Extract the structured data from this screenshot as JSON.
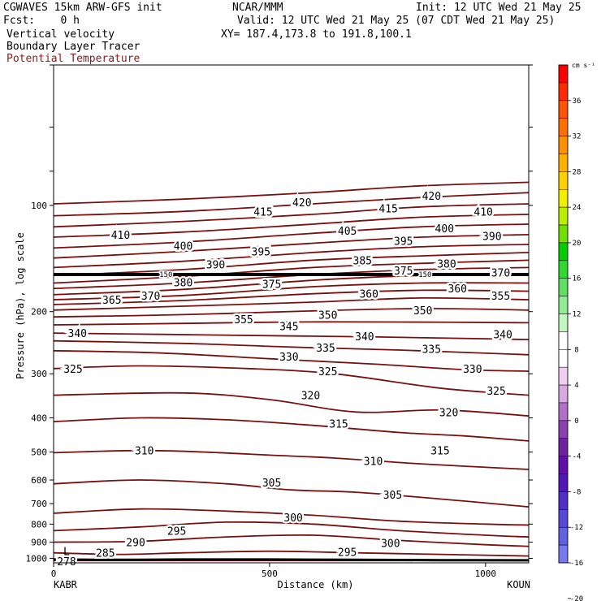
{
  "header": {
    "title": "CGWAVES 15km ARW-GFS init",
    "org": "NCAR/MMM",
    "init": "Init: 12 UTC Wed 21 May 25",
    "fcst": "Fcst:    0 h",
    "valid": "Valid: 12 UTC Wed 21 May 25 (07 CDT Wed 21 May 25)",
    "xy": "XY= 187.4,173.8 to 191.8,100.1",
    "field1": "Vertical velocity",
    "field2": "Boundary Layer Tracer",
    "field3": "Potential Temperature",
    "field3_color": "#8b1a1a"
  },
  "chart_data": {
    "type": "line",
    "ylabel": "Pressure (hPa), log scale",
    "xlabel": "Distance (km)",
    "x_start_label": "KABR",
    "x_end_label": "KOUN",
    "xlim": [
      0,
      1100
    ],
    "ylim": [
      1030,
      40
    ],
    "y_scale": "log",
    "x_ticks": [
      0,
      500,
      1000
    ],
    "y_ticks": [
      100,
      200,
      300,
      400,
      500,
      600,
      700,
      800,
      900,
      1000
    ],
    "contour_color": "#7a1010",
    "isentropes": [
      {
        "theta": 278,
        "points": [
          [
            0,
            1015
          ],
          [
            1100,
            1015
          ]
        ]
      },
      {
        "theta": 285,
        "points": [
          [
            0,
            965
          ],
          [
            150,
            975
          ],
          [
            300,
            965
          ],
          [
            500,
            955
          ],
          [
            700,
            965
          ],
          [
            900,
            975
          ],
          [
            1100,
            985
          ]
        ]
      },
      {
        "theta": 290,
        "points": [
          [
            0,
            900
          ],
          [
            200,
            895
          ],
          [
            400,
            870
          ],
          [
            600,
            860
          ],
          [
            800,
            890
          ],
          [
            1000,
            915
          ],
          [
            1100,
            925
          ]
        ]
      },
      {
        "theta": 295,
        "points": [
          [
            0,
            835
          ],
          [
            200,
            815
          ],
          [
            400,
            790
          ],
          [
            600,
            800
          ],
          [
            800,
            835
          ],
          [
            1000,
            860
          ],
          [
            1100,
            870
          ]
        ]
      },
      {
        "theta": 300,
        "points": [
          [
            0,
            745
          ],
          [
            200,
            725
          ],
          [
            400,
            735
          ],
          [
            600,
            755
          ],
          [
            800,
            785
          ],
          [
            1000,
            800
          ],
          [
            1100,
            805
          ]
        ]
      },
      {
        "theta": 305,
        "points": [
          [
            0,
            615
          ],
          [
            200,
            600
          ],
          [
            400,
            615
          ],
          [
            550,
            640
          ],
          [
            700,
            650
          ],
          [
            900,
            680
          ],
          [
            1100,
            715
          ]
        ]
      },
      {
        "theta": 310,
        "points": [
          [
            0,
            502
          ],
          [
            200,
            495
          ],
          [
            350,
            500
          ],
          [
            500,
            510
          ],
          [
            650,
            520
          ],
          [
            850,
            540
          ],
          [
            1100,
            560
          ]
        ]
      },
      {
        "theta": 315,
        "points": [
          [
            0,
            410
          ],
          [
            200,
            400
          ],
          [
            400,
            405
          ],
          [
            600,
            420
          ],
          [
            800,
            440
          ],
          [
            950,
            450
          ],
          [
            1100,
            465
          ]
        ]
      },
      {
        "theta": 320,
        "points": [
          [
            0,
            345
          ],
          [
            300,
            340
          ],
          [
            500,
            355
          ],
          [
            700,
            385
          ],
          [
            900,
            380
          ],
          [
            1100,
            395
          ]
        ]
      },
      {
        "theta": 325,
        "points": [
          [
            0,
            290
          ],
          [
            200,
            285
          ],
          [
            450,
            290
          ],
          [
            650,
            300
          ],
          [
            900,
            330
          ],
          [
            1100,
            345
          ]
        ]
      },
      {
        "theta": 330,
        "points": [
          [
            0,
            258
          ],
          [
            250,
            262
          ],
          [
            500,
            272
          ],
          [
            750,
            282
          ],
          [
            950,
            292
          ],
          [
            1100,
            295
          ]
        ]
      },
      {
        "theta": 335,
        "points": [
          [
            0,
            242
          ],
          [
            300,
            246
          ],
          [
            550,
            252
          ],
          [
            800,
            257
          ],
          [
            1100,
            265
          ]
        ]
      },
      {
        "theta": 340,
        "points": [
          [
            0,
            230
          ],
          [
            250,
            232
          ],
          [
            500,
            234
          ],
          [
            750,
            236
          ],
          [
            1100,
            240
          ]
        ]
      },
      {
        "theta": 345,
        "points": [
          [
            0,
            218
          ],
          [
            300,
            216
          ],
          [
            550,
            214
          ],
          [
            800,
            214
          ],
          [
            1100,
            215
          ]
        ]
      },
      {
        "theta": 350,
        "points": [
          [
            0,
            207
          ],
          [
            300,
            204
          ],
          [
            600,
            199
          ],
          [
            850,
            196
          ],
          [
            1100,
            198
          ]
        ]
      },
      {
        "theta": 355,
        "points": [
          [
            0,
            198
          ],
          [
            300,
            193
          ],
          [
            600,
            188
          ],
          [
            850,
            183
          ],
          [
            1100,
            185
          ]
        ]
      },
      {
        "theta": 360,
        "points": [
          [
            0,
            191
          ],
          [
            300,
            186
          ],
          [
            600,
            178
          ],
          [
            850,
            174
          ],
          [
            1100,
            175
          ]
        ]
      },
      {
        "theta": 365,
        "points": [
          [
            0,
            185
          ],
          [
            300,
            180
          ],
          [
            600,
            170
          ],
          [
            850,
            166
          ],
          [
            1100,
            166
          ]
        ]
      },
      {
        "theta": 370,
        "points": [
          [
            0,
            179
          ],
          [
            300,
            173
          ],
          [
            600,
            163
          ],
          [
            850,
            158
          ],
          [
            1100,
            157
          ]
        ]
      },
      {
        "theta": 375,
        "points": [
          [
            0,
            172
          ],
          [
            300,
            166
          ],
          [
            600,
            157
          ],
          [
            850,
            152
          ],
          [
            1100,
            150
          ]
        ]
      },
      {
        "theta": 380,
        "points": [
          [
            0,
            166
          ],
          [
            300,
            159
          ],
          [
            600,
            150
          ],
          [
            850,
            146
          ],
          [
            1100,
            143
          ]
        ]
      },
      {
        "theta": 385,
        "points": [
          [
            0,
            158
          ],
          [
            300,
            152
          ],
          [
            600,
            143
          ],
          [
            850,
            139
          ],
          [
            1100,
            136
          ]
        ]
      },
      {
        "theta": 390,
        "points": [
          [
            0,
            150
          ],
          [
            300,
            144
          ],
          [
            600,
            136
          ],
          [
            850,
            131
          ],
          [
            1100,
            129
          ]
        ]
      },
      {
        "theta": 395,
        "points": [
          [
            0,
            141
          ],
          [
            300,
            135
          ],
          [
            600,
            128
          ],
          [
            850,
            123
          ],
          [
            1100,
            121
          ]
        ]
      },
      {
        "theta": 400,
        "points": [
          [
            0,
            132
          ],
          [
            300,
            127
          ],
          [
            600,
            120
          ],
          [
            850,
            115
          ],
          [
            1100,
            113
          ]
        ]
      },
      {
        "theta": 405,
        "points": [
          [
            0,
            123
          ],
          [
            300,
            119
          ],
          [
            600,
            113
          ],
          [
            850,
            108
          ],
          [
            1100,
            106
          ]
        ]
      },
      {
        "theta": 410,
        "points": [
          [
            0,
            115
          ],
          [
            300,
            111
          ],
          [
            600,
            106
          ],
          [
            850,
            101
          ],
          [
            1100,
            99
          ]
        ]
      },
      {
        "theta": 415,
        "points": [
          [
            0,
            107
          ],
          [
            300,
            104
          ],
          [
            600,
            99
          ],
          [
            850,
            95
          ],
          [
            1100,
            92
          ]
        ]
      },
      {
        "theta": 420,
        "points": [
          [
            0,
            99
          ],
          [
            300,
            96
          ],
          [
            600,
            92
          ],
          [
            850,
            88
          ],
          [
            1100,
            86
          ]
        ]
      }
    ],
    "contour_labels": [
      {
        "text": "278",
        "x": 30,
        "p": 1020
      },
      {
        "text": "285",
        "x": 120,
        "p": 965
      },
      {
        "text": "290",
        "x": 190,
        "p": 900
      },
      {
        "text": "295",
        "x": 285,
        "p": 835
      },
      {
        "text": "295",
        "x": 680,
        "p": 960
      },
      {
        "text": "300",
        "x": 555,
        "p": 765
      },
      {
        "text": "300",
        "x": 780,
        "p": 905
      },
      {
        "text": "305",
        "x": 505,
        "p": 610
      },
      {
        "text": "305",
        "x": 785,
        "p": 660
      },
      {
        "text": "310",
        "x": 210,
        "p": 495
      },
      {
        "text": "310",
        "x": 740,
        "p": 530
      },
      {
        "text": "315",
        "x": 660,
        "p": 415
      },
      {
        "text": "315",
        "x": 895,
        "p": 495
      },
      {
        "text": "320",
        "x": 595,
        "p": 345
      },
      {
        "text": "320",
        "x": 915,
        "p": 385
      },
      {
        "text": "325",
        "x": 45,
        "p": 290
      },
      {
        "text": "325",
        "x": 635,
        "p": 295
      },
      {
        "text": "325",
        "x": 1025,
        "p": 335
      },
      {
        "text": "330",
        "x": 545,
        "p": 268
      },
      {
        "text": "330",
        "x": 970,
        "p": 290
      },
      {
        "text": "335",
        "x": 630,
        "p": 253
      },
      {
        "text": "335",
        "x": 875,
        "p": 255
      },
      {
        "text": "340",
        "x": 55,
        "p": 230
      },
      {
        "text": "340",
        "x": 720,
        "p": 235
      },
      {
        "text": "340",
        "x": 1040,
        "p": 232
      },
      {
        "text": "345",
        "x": 545,
        "p": 220
      },
      {
        "text": "350",
        "x": 635,
        "p": 204
      },
      {
        "text": "350",
        "x": 855,
        "p": 198
      },
      {
        "text": "355",
        "x": 440,
        "p": 210
      },
      {
        "text": "355",
        "x": 1035,
        "p": 180
      },
      {
        "text": "360",
        "x": 730,
        "p": 178
      },
      {
        "text": "360",
        "x": 935,
        "p": 172
      },
      {
        "text": "365",
        "x": 135,
        "p": 185
      },
      {
        "text": "370",
        "x": 225,
        "p": 180
      },
      {
        "text": "370",
        "x": 1035,
        "p": 155
      },
      {
        "text": "375",
        "x": 505,
        "p": 167
      },
      {
        "text": "375",
        "x": 810,
        "p": 153
      },
      {
        "text": "380",
        "x": 300,
        "p": 165
      },
      {
        "text": "380",
        "x": 910,
        "p": 146
      },
      {
        "text": "385",
        "x": 715,
        "p": 143
      },
      {
        "text": "390",
        "x": 375,
        "p": 147
      },
      {
        "text": "390",
        "x": 1015,
        "p": 122
      },
      {
        "text": "395",
        "x": 480,
        "p": 135
      },
      {
        "text": "395",
        "x": 810,
        "p": 126
      },
      {
        "text": "400",
        "x": 300,
        "p": 130
      },
      {
        "text": "400",
        "x": 905,
        "p": 116
      },
      {
        "text": "405",
        "x": 680,
        "p": 118
      },
      {
        "text": "410",
        "x": 155,
        "p": 121
      },
      {
        "text": "410",
        "x": 995,
        "p": 104
      },
      {
        "text": "415",
        "x": 485,
        "p": 104
      },
      {
        "text": "415",
        "x": 775,
        "p": 102
      },
      {
        "text": "420",
        "x": 575,
        "p": 98
      },
      {
        "text": "420",
        "x": 875,
        "p": 94
      },
      {
        "text": "365",
        "x": 135,
        "p": 185
      }
    ],
    "black_line": {
      "p": 157,
      "labels": [
        {
          "text": "150",
          "x": 260
        },
        {
          "text": "150",
          "x": 860
        }
      ]
    },
    "ground": {
      "points": [
        [
          0,
          1008
        ],
        [
          150,
          1010
        ],
        [
          300,
          1008
        ],
        [
          500,
          1008
        ],
        [
          700,
          1010
        ],
        [
          900,
          1012
        ],
        [
          1100,
          1013
        ]
      ]
    },
    "low_marker": {
      "text": "L",
      "x": 30,
      "p": 955
    },
    "colorbar": {
      "unit": "cm s⁻¹",
      "labels": [
        "36",
        "32",
        "28",
        "24",
        "20",
        "16",
        "12",
        "8",
        "4",
        "0",
        "-4",
        "-8",
        "-12",
        "-16",
        "-20"
      ],
      "colors": [
        "#ff0000",
        "#ff2a00",
        "#ff5500",
        "#ff7000",
        "#ff9000",
        "#ffb000",
        "#ffd000",
        "#f0f000",
        "#b8f000",
        "#70e000",
        "#00d000",
        "#30d830",
        "#60e060",
        "#90ec90",
        "#c0f8c0",
        "#ffffff",
        "#ffffff",
        "#f0d0f0",
        "#d8a8e0",
        "#b070c8",
        "#8c40b0",
        "#7020a0",
        "#6010a8",
        "#5018b8",
        "#5030c8",
        "#5848d8",
        "#6060e0",
        "#7878f0"
      ]
    }
  }
}
